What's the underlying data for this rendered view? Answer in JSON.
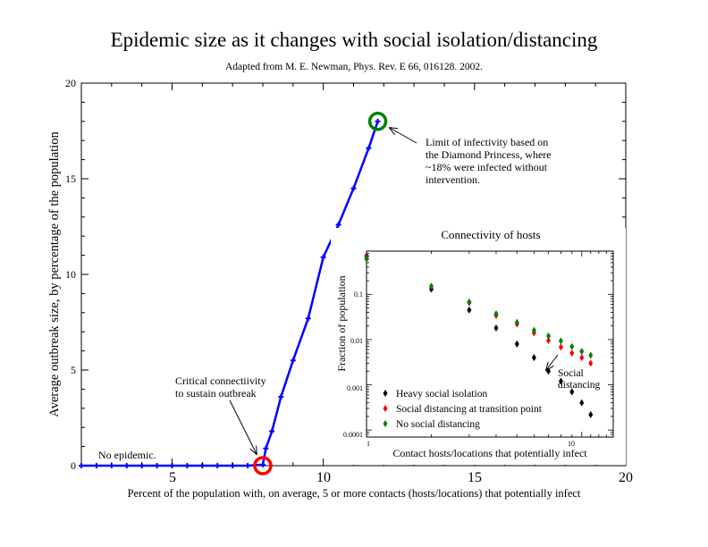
{
  "title": "Epidemic size as it changes with social isolation/distancing",
  "subtitle": "Adapted from M. E. Newman, Phys. Rev. E 66, 016128. 2002.",
  "chart_data": [
    {
      "type": "line",
      "xlabel": "Percent of the population with, on average, 5 or more contacts (hosts/locations) that potentially infect",
      "ylabel": "Average outbreak size, by percentage of the population",
      "xlim": [
        2,
        20
      ],
      "ylim": [
        0,
        20
      ],
      "xticks": [
        "5",
        "10",
        "15",
        "20"
      ],
      "yticks": [
        "0",
        "5",
        "10",
        "15",
        "20"
      ],
      "grid": false,
      "color": "#0000ff",
      "series": [
        {
          "x": [
            2,
            2.5,
            3,
            3.5,
            4,
            4.5,
            5,
            5.5,
            6,
            6.5,
            7,
            7.5,
            8,
            8.1,
            8.3,
            8.6,
            9,
            9.5,
            10,
            10.5,
            11,
            11.5,
            11.8
          ],
          "values": [
            0,
            0,
            0,
            0,
            0,
            0,
            0,
            0,
            0,
            0,
            0,
            0,
            0.05,
            0.9,
            1.8,
            3.6,
            5.5,
            7.7,
            10.9,
            12.6,
            14.5,
            16.6,
            18
          ]
        }
      ],
      "markers": [
        {
          "x": 8,
          "y": 0,
          "color": "#ff0000"
        },
        {
          "x": 11.8,
          "y": 18,
          "color": "#008000"
        }
      ],
      "annotations": [
        {
          "lines": [
            "No epidemic."
          ]
        },
        {
          "lines": [
            "Critical connectiivity",
            "to sustain outbreak"
          ]
        },
        {
          "lines": [
            "Limit of infectivity based on",
            "the Diamond Princess, where",
            "~18% were infected without",
            "intervention."
          ]
        }
      ]
    },
    {
      "type": "scatter",
      "title": "Connectivity of hosts",
      "xlabel": "Contact hosts/locations that potentially infect",
      "ylabel": "Fraction of population",
      "xscale": "log",
      "yscale": "log",
      "xlim": [
        1,
        14
      ],
      "ylim": [
        7e-05,
        0.9
      ],
      "xticks": [
        "1",
        "10"
      ],
      "yticks": [
        "0.0001",
        "0.001",
        "0.01",
        "0.1"
      ],
      "legend": "bottom-left",
      "series": [
        {
          "name": "Heavy social isolation",
          "color": "#000000",
          "x": [
            1,
            2,
            3,
            4,
            5,
            6,
            7,
            8,
            9,
            10,
            11
          ],
          "values": [
            0.7,
            0.13,
            0.045,
            0.018,
            0.008,
            0.004,
            0.002,
            0.0012,
            0.0007,
            0.0004,
            0.00022
          ]
        },
        {
          "name": "Social distancing at transition point",
          "color": "#ff0000",
          "x": [
            1,
            2,
            3,
            4,
            5,
            6,
            7,
            8,
            9,
            10,
            11
          ],
          "values": [
            0.65,
            0.15,
            0.065,
            0.034,
            0.022,
            0.014,
            0.0095,
            0.0068,
            0.005,
            0.004,
            0.003
          ]
        },
        {
          "name": "No social distancing",
          "color": "#008000",
          "x": [
            1,
            2,
            3,
            4,
            5,
            6,
            7,
            8,
            9,
            10,
            11
          ],
          "values": [
            0.6,
            0.15,
            0.068,
            0.037,
            0.024,
            0.016,
            0.012,
            0.0093,
            0.007,
            0.0055,
            0.0045
          ]
        }
      ],
      "annotations": [
        {
          "lines": [
            "Social",
            "distancing"
          ]
        }
      ]
    }
  ]
}
